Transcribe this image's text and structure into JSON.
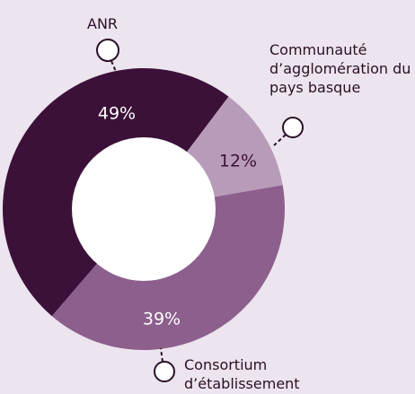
{
  "chart_data": {
    "type": "donut",
    "categories": [
      "ANR",
      "Communauté d’agglomération du pays basque",
      "Consortium d’établissement"
    ],
    "values": [
      49,
      12,
      39
    ],
    "value_labels": [
      "49%",
      "12%",
      "39%"
    ],
    "colors": [
      "#3c1139",
      "#b89bb8",
      "#8c5f8d"
    ]
  }
}
